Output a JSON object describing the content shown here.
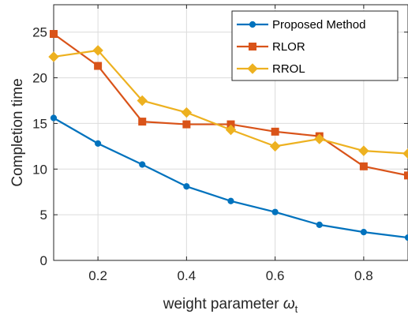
{
  "chart_data": {
    "type": "line",
    "x": [
      0.1,
      0.2,
      0.3,
      0.4,
      0.5,
      0.6,
      0.7,
      0.8,
      0.9
    ],
    "series": [
      {
        "name": "Proposed Method",
        "values": [
          15.6,
          12.8,
          10.5,
          8.1,
          6.5,
          5.3,
          3.9,
          3.1,
          2.5
        ],
        "color": "#0072BD",
        "marker": "circle"
      },
      {
        "name": "RLOR",
        "values": [
          24.8,
          21.3,
          15.2,
          14.9,
          14.9,
          14.1,
          13.6,
          10.3,
          9.3
        ],
        "color": "#D95319",
        "marker": "square"
      },
      {
        "name": "RROL",
        "values": [
          22.3,
          23.0,
          17.5,
          16.2,
          14.3,
          12.5,
          13.3,
          12.0,
          11.7
        ],
        "color": "#EDB120",
        "marker": "diamond"
      }
    ],
    "xlabel": "weight parameter",
    "xlabel_symbol": "ω",
    "xlabel_subscript": "t",
    "ylabel": "Completion time",
    "xlim": [
      0.1,
      0.9
    ],
    "ylim": [
      0,
      28
    ],
    "xticks": [
      0.2,
      0.4,
      0.6,
      0.8
    ],
    "xtick_labels": [
      "0.2",
      "0.4",
      "0.6",
      "0.8"
    ],
    "yticks": [
      0,
      5,
      10,
      15,
      20,
      25
    ],
    "ytick_labels": [
      "0",
      "5",
      "10",
      "15",
      "20",
      "25"
    ],
    "grid": true,
    "legend": "top-right"
  }
}
